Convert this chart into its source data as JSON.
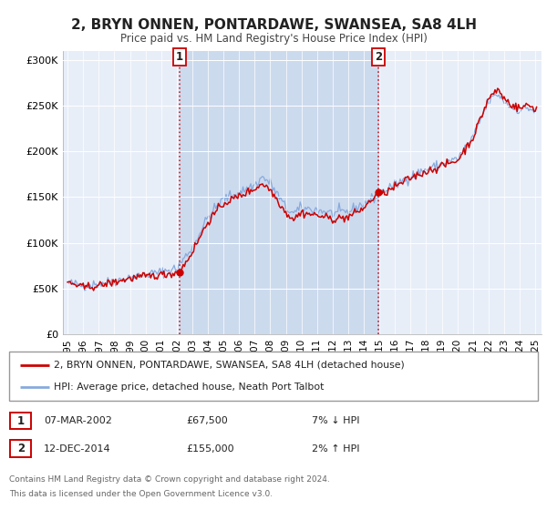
{
  "title": "2, BRYN ONNEN, PONTARDAWE, SWANSEA, SA8 4LH",
  "subtitle": "Price paid vs. HM Land Registry's House Price Index (HPI)",
  "legend_line1": "2, BRYN ONNEN, PONTARDAWE, SWANSEA, SA8 4LH (detached house)",
  "legend_line2": "HPI: Average price, detached house, Neath Port Talbot",
  "sale1_date": "07-MAR-2002",
  "sale1_price": 67500,
  "sale1_price_str": "£67,500",
  "sale1_hpi": "7% ↓ HPI",
  "sale2_date": "12-DEC-2014",
  "sale2_price": 155000,
  "sale2_price_str": "£155,000",
  "sale2_hpi": "2% ↑ HPI",
  "footnote1": "Contains HM Land Registry data © Crown copyright and database right 2024.",
  "footnote2": "This data is licensed under the Open Government Licence v3.0.",
  "sale1_color": "#cc0000",
  "sale2_color": "#cc0000",
  "hpi_color": "#88aadd",
  "price_color": "#cc0000",
  "background_color": "#ffffff",
  "plot_bg_color": "#e8eef8",
  "shade_color": "#ccdaee",
  "grid_color": "#ffffff",
  "ylim": [
    0,
    310000
  ],
  "yticks": [
    0,
    50000,
    100000,
    150000,
    200000,
    250000,
    300000
  ],
  "sale1_x": 2002.18,
  "sale1_y": 67500,
  "sale2_x": 2014.95,
  "sale2_y": 155000,
  "xmin": 1994.7,
  "xmax": 2025.4
}
